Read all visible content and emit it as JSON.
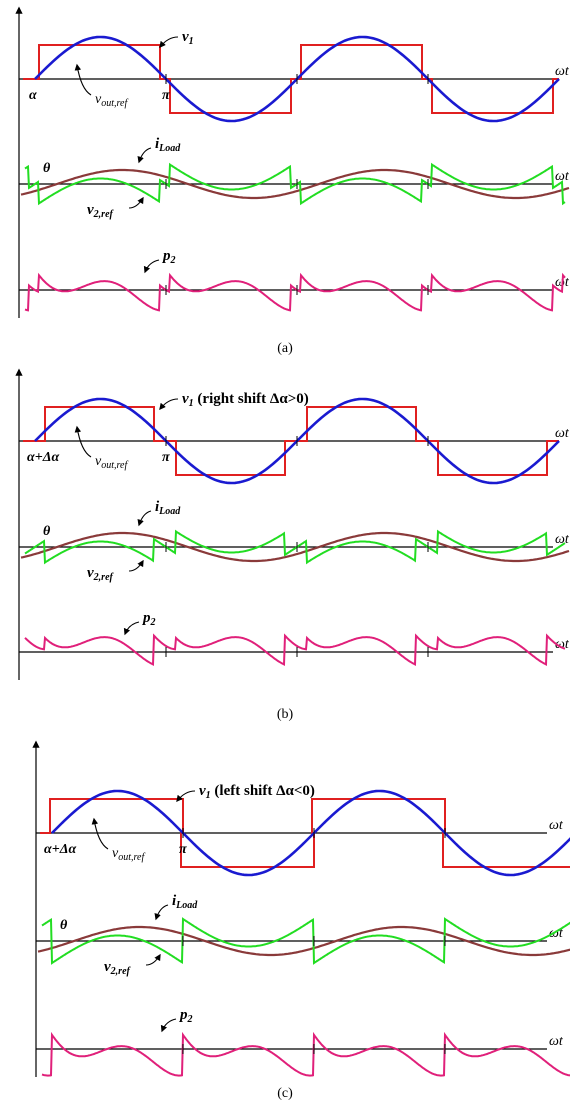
{
  "colors": {
    "square_wave": "#e02020",
    "sine_reference": "#1a1ad0",
    "load_current": "#8a3a3a",
    "v2_reference": "#22dd22",
    "power": "#e0207a",
    "axis": "#000000"
  },
  "panels": [
    {
      "caption": "(a)",
      "labels": {
        "v1": "v",
        "v1_sub": "1",
        "v1_suffix": "",
        "vout": "v",
        "vout_sub": "out,ref",
        "alpha": "α",
        "pi": "π",
        "theta": "θ",
        "iload": "i",
        "iload_sub": "Load",
        "v2": "v",
        "v2_sub": "2,ref",
        "p2": "p",
        "p2_sub": "2",
        "wt": "ωt"
      },
      "shift": 0
    },
    {
      "caption": "(b)",
      "labels": {
        "v1": "v",
        "v1_sub": "1",
        "v1_suffix": " (right shift Δα>0)",
        "vout": "v",
        "vout_sub": "out,ref",
        "alpha": "α+Δα",
        "pi": "π",
        "theta": "θ",
        "iload": "i",
        "iload_sub": "Load",
        "v2": "v",
        "v2_sub": "2,ref",
        "p2": "p",
        "p2_sub": "2",
        "wt": "ωt"
      },
      "shift": 1
    },
    {
      "caption": "(c)",
      "labels": {
        "v1": "v",
        "v1_sub": "1",
        "v1_suffix": " (left shift Δα<0)",
        "vout": "v",
        "vout_sub": "out,ref",
        "alpha": "α+Δα",
        "pi": "π",
        "theta": "θ",
        "iload": "i",
        "iload_sub": "Load",
        "v2": "v",
        "v2_sub": "2,ref",
        "p2": "p",
        "p2_sub": "2",
        "wt": "ωt"
      },
      "shift": -1
    }
  ]
}
